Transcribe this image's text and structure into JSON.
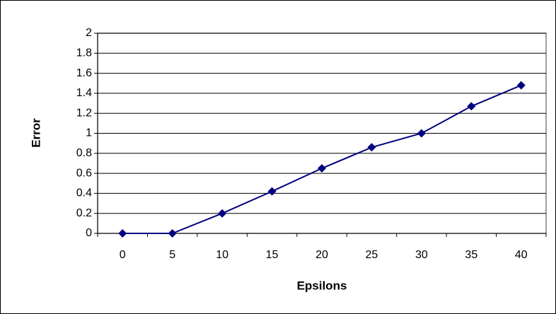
{
  "chart_data": {
    "type": "line",
    "x_label": "Epsilons",
    "y_label": "Error",
    "categories": [
      "0",
      "5",
      "10",
      "15",
      "20",
      "25",
      "30",
      "35",
      "40"
    ],
    "series": [
      {
        "color": "#000080",
        "values": [
          0,
          0,
          0.2,
          0.42,
          0.65,
          0.86,
          1.0,
          1.27,
          1.48
        ]
      }
    ],
    "ylim": [
      0,
      2
    ],
    "yticks": [
      0,
      0.2,
      0.4,
      0.6,
      0.8,
      1,
      1.2,
      1.4,
      1.6,
      1.8,
      2
    ],
    "grid": true,
    "marker": "diamond"
  }
}
